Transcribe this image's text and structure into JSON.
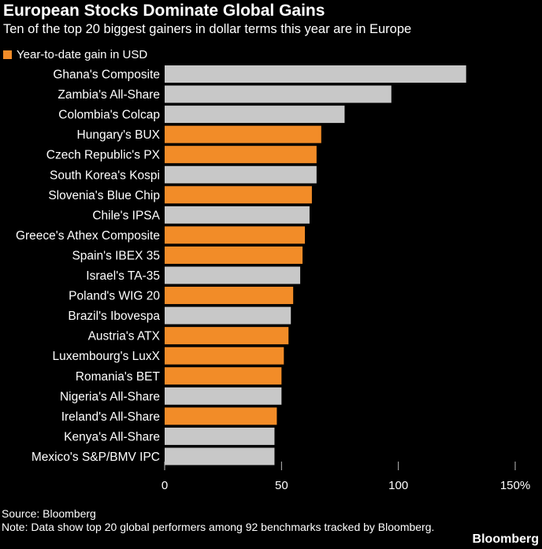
{
  "header": {
    "title": "European Stocks Dominate Global Gains",
    "subtitle": "Ten of the top 20 biggest gainers in dollar terms this year are in Europe"
  },
  "footer": {
    "source": "Source: Bloomberg",
    "note": "Note: Data show top 20 global performers among 92 benchmarks tracked by Bloomberg.",
    "brand": "Bloomberg"
  },
  "colors": {
    "europe": "#F28C28",
    "other": "#C8C8C8",
    "background": "#000000",
    "text": "#FFFFFF"
  },
  "chart_data": {
    "type": "bar",
    "orientation": "horizontal",
    "legend": [
      "Year-to-date gain in USD"
    ],
    "legend_placement": "top-left",
    "xlim": [
      0,
      150
    ],
    "xticks": [
      0,
      50,
      100,
      150
    ],
    "xtick_labels": [
      "0",
      "50",
      "100",
      "150%"
    ],
    "grid": false,
    "categories": [
      "Ghana's Composite",
      "Zambia's All-Share",
      "Colombia's Colcap",
      "Hungary's BUX",
      "Czech Republic's PX",
      "South Korea's Kospi",
      "Slovenia's Blue Chip",
      "Chile's IPSA",
      "Greece's Athex Composite",
      "Spain's IBEX 35",
      "Israel's TA-35",
      "Poland's WIG 20",
      "Brazil's Ibovespa",
      "Austria's ATX",
      "Luxembourg's LuxX",
      "Romania's BET",
      "Nigeria's All-Share",
      "Ireland's All-Share",
      "Kenya's All-Share",
      "Mexico's S&P/BMV IPC"
    ],
    "values": [
      129,
      97,
      77,
      67,
      65,
      65,
      63,
      62,
      60,
      59,
      58,
      55,
      54,
      53,
      51,
      50,
      50,
      48,
      47,
      47
    ],
    "europe": [
      false,
      false,
      false,
      true,
      true,
      false,
      true,
      false,
      true,
      true,
      false,
      true,
      false,
      true,
      true,
      true,
      false,
      true,
      false,
      false
    ]
  }
}
